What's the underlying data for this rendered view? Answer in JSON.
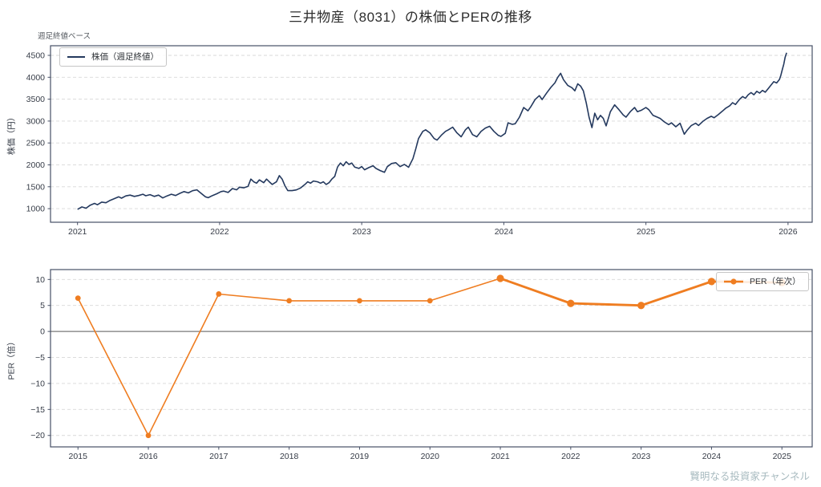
{
  "title": "三井物産（8031）の株価とPERの推移",
  "subtitle": "週足終値ベース",
  "watermark": "賢明なる投資家チャンネル",
  "colors": {
    "price_line": "#24395e",
    "per_line": "#ef7d21",
    "grid": "#d8d8d8",
    "zero_line": "#7a7a7a",
    "spine": "#475066",
    "tick_text": "#363c47",
    "title_text": "#2d2d2d",
    "watermark_text": "#a7babf",
    "background": "#ffffff"
  },
  "chart_data": [
    {
      "type": "line",
      "name": "stock-price-weekly",
      "ylabel": "株価（円）",
      "legend": "株価（週足終値）",
      "legend_position": "upper left",
      "grid": "dashed horizontal",
      "xlim": [
        2020.81,
        2026.17
      ],
      "ylim": [
        690,
        4720
      ],
      "xticks": [
        2021,
        2022,
        2023,
        2024,
        2025,
        2026
      ],
      "yticks": [
        1000,
        1500,
        2000,
        2500,
        3000,
        3500,
        4000,
        4500
      ],
      "series": [
        {
          "name": "株価（週足終値）",
          "points": [
            [
              2021.0,
              985
            ],
            [
              2021.03,
              1040
            ],
            [
              2021.06,
              1010
            ],
            [
              2021.09,
              1080
            ],
            [
              2021.12,
              1120
            ],
            [
              2021.14,
              1090
            ],
            [
              2021.17,
              1150
            ],
            [
              2021.2,
              1135
            ],
            [
              2021.23,
              1190
            ],
            [
              2021.26,
              1230
            ],
            [
              2021.29,
              1270
            ],
            [
              2021.31,
              1240
            ],
            [
              2021.34,
              1290
            ],
            [
              2021.37,
              1310
            ],
            [
              2021.4,
              1280
            ],
            [
              2021.43,
              1300
            ],
            [
              2021.46,
              1330
            ],
            [
              2021.48,
              1295
            ],
            [
              2021.51,
              1320
            ],
            [
              2021.54,
              1280
            ],
            [
              2021.57,
              1310
            ],
            [
              2021.6,
              1245
            ],
            [
              2021.63,
              1290
            ],
            [
              2021.66,
              1330
            ],
            [
              2021.69,
              1300
            ],
            [
              2021.72,
              1350
            ],
            [
              2021.75,
              1390
            ],
            [
              2021.78,
              1360
            ],
            [
              2021.81,
              1410
            ],
            [
              2021.84,
              1430
            ],
            [
              2021.87,
              1350
            ],
            [
              2021.9,
              1270
            ],
            [
              2021.92,
              1250
            ],
            [
              2021.95,
              1300
            ],
            [
              2021.98,
              1340
            ],
            [
              2022.01,
              1390
            ],
            [
              2022.03,
              1400
            ],
            [
              2022.06,
              1370
            ],
            [
              2022.09,
              1460
            ],
            [
              2022.12,
              1430
            ],
            [
              2022.14,
              1490
            ],
            [
              2022.17,
              1475
            ],
            [
              2022.2,
              1510
            ],
            [
              2022.22,
              1675
            ],
            [
              2022.24,
              1613
            ],
            [
              2022.26,
              1583
            ],
            [
              2022.28,
              1657
            ],
            [
              2022.31,
              1594
            ],
            [
              2022.33,
              1675
            ],
            [
              2022.35,
              1613
            ],
            [
              2022.37,
              1552
            ],
            [
              2022.4,
              1613
            ],
            [
              2022.42,
              1754
            ],
            [
              2022.44,
              1675
            ],
            [
              2022.46,
              1521
            ],
            [
              2022.48,
              1411
            ],
            [
              2022.51,
              1411
            ],
            [
              2022.54,
              1429
            ],
            [
              2022.57,
              1473
            ],
            [
              2022.6,
              1552
            ],
            [
              2022.62,
              1613
            ],
            [
              2022.64,
              1583
            ],
            [
              2022.66,
              1631
            ],
            [
              2022.69,
              1613
            ],
            [
              2022.71,
              1583
            ],
            [
              2022.73,
              1613
            ],
            [
              2022.75,
              1552
            ],
            [
              2022.77,
              1594
            ],
            [
              2022.79,
              1675
            ],
            [
              2022.81,
              1736
            ],
            [
              2022.83,
              1950
            ],
            [
              2022.85,
              2041
            ],
            [
              2022.87,
              1980
            ],
            [
              2022.89,
              2071
            ],
            [
              2022.91,
              2010
            ],
            [
              2022.93,
              2041
            ],
            [
              2022.95,
              1950
            ],
            [
              2022.98,
              1919
            ],
            [
              2023.0,
              1961
            ],
            [
              2023.02,
              1888
            ],
            [
              2023.05,
              1938
            ],
            [
              2023.08,
              1980
            ],
            [
              2023.1,
              1919
            ],
            [
              2023.13,
              1870
            ],
            [
              2023.16,
              1830
            ],
            [
              2023.18,
              1960
            ],
            [
              2023.21,
              2030
            ],
            [
              2023.24,
              2050
            ],
            [
              2023.27,
              1960
            ],
            [
              2023.3,
              2010
            ],
            [
              2023.33,
              1945
            ],
            [
              2023.36,
              2140
            ],
            [
              2023.38,
              2360
            ],
            [
              2023.4,
              2600
            ],
            [
              2023.43,
              2765
            ],
            [
              2023.45,
              2800
            ],
            [
              2023.48,
              2730
            ],
            [
              2023.51,
              2600
            ],
            [
              2023.53,
              2565
            ],
            [
              2023.56,
              2675
            ],
            [
              2023.59,
              2765
            ],
            [
              2023.61,
              2800
            ],
            [
              2023.64,
              2860
            ],
            [
              2023.67,
              2730
            ],
            [
              2023.7,
              2640
            ],
            [
              2023.73,
              2800
            ],
            [
              2023.75,
              2860
            ],
            [
              2023.78,
              2690
            ],
            [
              2023.81,
              2640
            ],
            [
              2023.84,
              2765
            ],
            [
              2023.87,
              2840
            ],
            [
              2023.9,
              2880
            ],
            [
              2023.93,
              2765
            ],
            [
              2023.96,
              2675
            ],
            [
              2023.98,
              2650
            ],
            [
              2024.01,
              2720
            ],
            [
              2024.03,
              2960
            ],
            [
              2024.06,
              2925
            ],
            [
              2024.08,
              2940
            ],
            [
              2024.11,
              3090
            ],
            [
              2024.14,
              3310
            ],
            [
              2024.17,
              3235
            ],
            [
              2024.19,
              3330
            ],
            [
              2024.22,
              3490
            ],
            [
              2024.25,
              3580
            ],
            [
              2024.27,
              3490
            ],
            [
              2024.3,
              3635
            ],
            [
              2024.33,
              3765
            ],
            [
              2024.36,
              3875
            ],
            [
              2024.38,
              4000
            ],
            [
              2024.4,
              4090
            ],
            [
              2024.42,
              3945
            ],
            [
              2024.45,
              3815
            ],
            [
              2024.48,
              3760
            ],
            [
              2024.5,
              3690
            ],
            [
              2024.52,
              3850
            ],
            [
              2024.54,
              3800
            ],
            [
              2024.56,
              3690
            ],
            [
              2024.58,
              3415
            ],
            [
              2024.6,
              3090
            ],
            [
              2024.62,
              2850
            ],
            [
              2024.64,
              3180
            ],
            [
              2024.66,
              3030
            ],
            [
              2024.68,
              3130
            ],
            [
              2024.7,
              3060
            ],
            [
              2024.72,
              2890
            ],
            [
              2024.75,
              3215
            ],
            [
              2024.78,
              3370
            ],
            [
              2024.81,
              3260
            ],
            [
              2024.84,
              3140
            ],
            [
              2024.86,
              3090
            ],
            [
              2024.89,
              3215
            ],
            [
              2024.92,
              3310
            ],
            [
              2024.94,
              3215
            ],
            [
              2024.97,
              3250
            ],
            [
              2025.0,
              3310
            ],
            [
              2025.02,
              3260
            ],
            [
              2025.05,
              3130
            ],
            [
              2025.08,
              3090
            ],
            [
              2025.1,
              3060
            ],
            [
              2025.13,
              2980
            ],
            [
              2025.16,
              2920
            ],
            [
              2025.18,
              2960
            ],
            [
              2025.21,
              2870
            ],
            [
              2025.24,
              2950
            ],
            [
              2025.27,
              2700
            ],
            [
              2025.29,
              2790
            ],
            [
              2025.32,
              2900
            ],
            [
              2025.35,
              2950
            ],
            [
              2025.37,
              2900
            ],
            [
              2025.4,
              2990
            ],
            [
              2025.43,
              3060
            ],
            [
              2025.46,
              3110
            ],
            [
              2025.48,
              3075
            ],
            [
              2025.51,
              3150
            ],
            [
              2025.54,
              3230
            ],
            [
              2025.56,
              3290
            ],
            [
              2025.59,
              3350
            ],
            [
              2025.61,
              3420
            ],
            [
              2025.63,
              3380
            ],
            [
              2025.66,
              3500
            ],
            [
              2025.68,
              3560
            ],
            [
              2025.7,
              3520
            ],
            [
              2025.72,
              3600
            ],
            [
              2025.74,
              3650
            ],
            [
              2025.76,
              3600
            ],
            [
              2025.78,
              3680
            ],
            [
              2025.8,
              3640
            ],
            [
              2025.82,
              3700
            ],
            [
              2025.84,
              3660
            ],
            [
              2025.86,
              3740
            ],
            [
              2025.88,
              3820
            ],
            [
              2025.9,
              3900
            ],
            [
              2025.92,
              3870
            ],
            [
              2025.94,
              3950
            ],
            [
              2025.95,
              4050
            ],
            [
              2025.96,
              4180
            ],
            [
              2025.97,
              4300
            ],
            [
              2025.98,
              4460
            ],
            [
              2025.99,
              4560
            ]
          ]
        }
      ]
    },
    {
      "type": "line",
      "name": "per-annual",
      "ylabel": "PER（倍）",
      "legend": "PER（年次）",
      "legend_position": "upper right",
      "grid": "dashed horizontal",
      "zero_line": true,
      "xlim": [
        2014.61,
        2025.43
      ],
      "ylim": [
        -22.2,
        11.9
      ],
      "xticks": [
        2015,
        2016,
        2017,
        2018,
        2019,
        2020,
        2021,
        2022,
        2023,
        2024,
        2025
      ],
      "yticks": [
        10,
        5,
        0,
        -5,
        -10,
        -15,
        -20
      ],
      "x": [
        2015,
        2016,
        2017,
        2018,
        2019,
        2020,
        2021,
        2022,
        2023,
        2024,
        2025
      ],
      "values": [
        6.4,
        -20.0,
        7.2,
        5.9,
        5.9,
        5.9,
        10.2,
        5.4,
        5.0,
        9.6,
        9.4
      ],
      "emphasis_from_x": 2021
    }
  ]
}
